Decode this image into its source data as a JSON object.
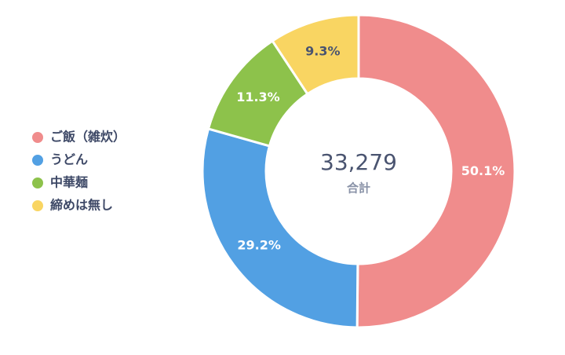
{
  "chart_data": {
    "type": "donut",
    "categories": [
      "ご飯（雑炊）",
      "うどん",
      "中華麺",
      "締めは無し"
    ],
    "values": [
      50.1,
      29.2,
      11.3,
      9.3
    ],
    "value_labels": [
      "50.1%",
      "29.2%",
      "11.3%",
      "9.3%"
    ],
    "colors": [
      "#f08c8c",
      "#52a0e3",
      "#8dc24b",
      "#f9d562"
    ],
    "center_text": "33,279",
    "center_caption": "合計",
    "legend": "left"
  }
}
